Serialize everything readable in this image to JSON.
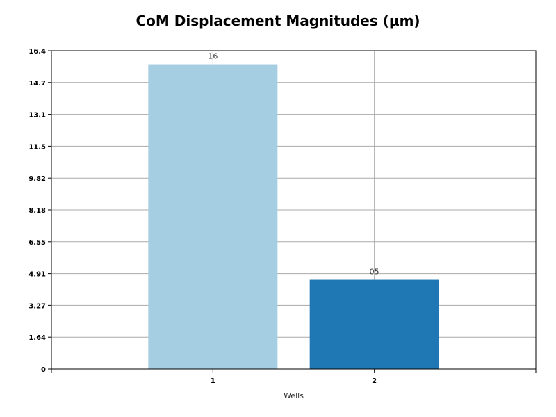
{
  "chart_data": {
    "type": "bar",
    "title": "CoM Displacement Magnitudes (µm)",
    "xlabel": "Wells",
    "ylabel": "",
    "categories": [
      "1",
      "2"
    ],
    "values": [
      15.7,
      4.6
    ],
    "data_labels": [
      "16",
      "05"
    ],
    "colors": [
      "#a6cee3",
      "#1f78b4"
    ],
    "ylim": [
      0,
      16.4
    ],
    "yticks": [
      "0",
      "1.64",
      "3.27",
      "4.91",
      "6.55",
      "8.18",
      "9.82",
      "11.5",
      "13.1",
      "14.7",
      "16.4"
    ],
    "grid": true,
    "legend": "none"
  }
}
